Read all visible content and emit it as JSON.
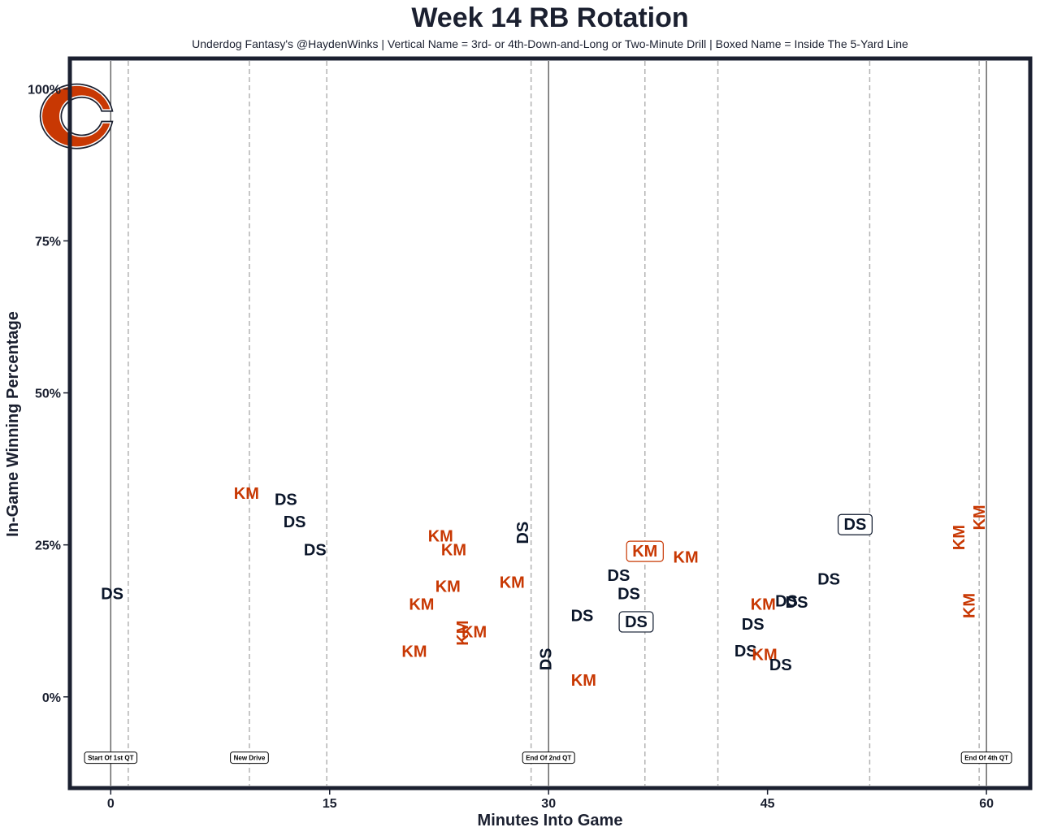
{
  "colors": {
    "ds": "#0b162a",
    "km": "#c83803",
    "frame": "#1b2030",
    "logo_fill": "#c83803",
    "logo_stroke": "#1b2030"
  },
  "logo": {
    "name": "bears-c-logo"
  },
  "chart_data": {
    "type": "scatter",
    "title": "Week 14 RB Rotation",
    "subtitle": "Underdog Fantasy's @HaydenWinks | Vertical Name = 3rd- or 4th-Down-and-Long or Two-Minute Drill | Boxed Name = Inside The 5-Yard Line",
    "xlabel": "Minutes Into Game",
    "ylabel": "In-Game Winning Percentage",
    "xlim": [
      -2.8,
      63
    ],
    "ylim": [
      -15,
      105
    ],
    "xticks": [
      0,
      15,
      30,
      45,
      60
    ],
    "xtick_labels": [
      "0",
      "15",
      "30",
      "45",
      "60"
    ],
    "yticks": [
      0,
      25,
      50,
      75,
      100
    ],
    "ytick_labels": [
      "0%",
      "25%",
      "50%",
      "75%",
      "100%"
    ],
    "solid_vlines": [
      0,
      30,
      60
    ],
    "dashed_vlines": [
      1.2,
      9.5,
      14.8,
      28.8,
      36.6,
      41.6,
      52.0,
      59.5
    ],
    "annotations": [
      {
        "x": 0,
        "text": "Start Of 1st QT"
      },
      {
        "x": 9.5,
        "text": "New Drive"
      },
      {
        "x": 30,
        "text": "End Of 2nd QT"
      },
      {
        "x": 60,
        "text": "End Of 4th QT"
      }
    ],
    "points": [
      {
        "player": "DS",
        "x": 0.1,
        "y": 17,
        "style": "normal"
      },
      {
        "player": "KM",
        "x": 9.3,
        "y": 33.5,
        "style": "normal"
      },
      {
        "player": "DS",
        "x": 12.0,
        "y": 32.5,
        "style": "normal"
      },
      {
        "player": "DS",
        "x": 12.6,
        "y": 28.8,
        "style": "normal"
      },
      {
        "player": "DS",
        "x": 14.0,
        "y": 24.2,
        "style": "normal"
      },
      {
        "player": "KM",
        "x": 22.6,
        "y": 26.5,
        "style": "normal"
      },
      {
        "player": "KM",
        "x": 23.5,
        "y": 24.2,
        "style": "normal"
      },
      {
        "player": "KM",
        "x": 23.1,
        "y": 18.2,
        "style": "normal"
      },
      {
        "player": "KM",
        "x": 21.3,
        "y": 15.3,
        "style": "normal"
      },
      {
        "player": "KM",
        "x": 27.5,
        "y": 18.9,
        "style": "normal"
      },
      {
        "player": "DS",
        "x": 28.2,
        "y": 27.0,
        "style": "vertical"
      },
      {
        "player": "KM",
        "x": 24.9,
        "y": 10.7,
        "style": "normal"
      },
      {
        "player": "KM",
        "x": 24.1,
        "y": 10.5,
        "style": "vertical"
      },
      {
        "player": "KM",
        "x": 20.8,
        "y": 7.5,
        "style": "normal"
      },
      {
        "player": "DS",
        "x": 29.8,
        "y": 6.2,
        "style": "vertical"
      },
      {
        "player": "DS",
        "x": 32.3,
        "y": 13.4,
        "style": "normal"
      },
      {
        "player": "KM",
        "x": 32.4,
        "y": 2.8,
        "style": "normal"
      },
      {
        "player": "DS",
        "x": 34.8,
        "y": 20.0,
        "style": "normal"
      },
      {
        "player": "DS",
        "x": 35.5,
        "y": 17.0,
        "style": "normal"
      },
      {
        "player": "KM",
        "x": 36.6,
        "y": 24.0,
        "style": "boxed"
      },
      {
        "player": "KM",
        "x": 39.4,
        "y": 23.0,
        "style": "normal"
      },
      {
        "player": "DS",
        "x": 36.0,
        "y": 12.4,
        "style": "boxed"
      },
      {
        "player": "DS",
        "x": 51.0,
        "y": 28.4,
        "style": "boxed"
      },
      {
        "player": "DS",
        "x": 49.2,
        "y": 19.4,
        "style": "normal"
      },
      {
        "player": "KM",
        "x": 44.7,
        "y": 15.3,
        "style": "normal"
      },
      {
        "player": "DS",
        "x": 46.3,
        "y": 15.8,
        "style": "normal"
      },
      {
        "player": "DS",
        "x": 47.0,
        "y": 15.6,
        "style": "normal"
      },
      {
        "player": "DS",
        "x": 44.0,
        "y": 12.0,
        "style": "normal"
      },
      {
        "player": "DS",
        "x": 43.5,
        "y": 7.6,
        "style": "normal"
      },
      {
        "player": "KM",
        "x": 44.8,
        "y": 7.0,
        "style": "normal"
      },
      {
        "player": "DS",
        "x": 45.9,
        "y": 5.3,
        "style": "normal"
      },
      {
        "player": "KM",
        "x": 58.1,
        "y": 26.2,
        "style": "vertical"
      },
      {
        "player": "KM",
        "x": 59.5,
        "y": 29.5,
        "style": "vertical"
      },
      {
        "player": "KM",
        "x": 58.8,
        "y": 15.0,
        "style": "vertical"
      }
    ]
  }
}
